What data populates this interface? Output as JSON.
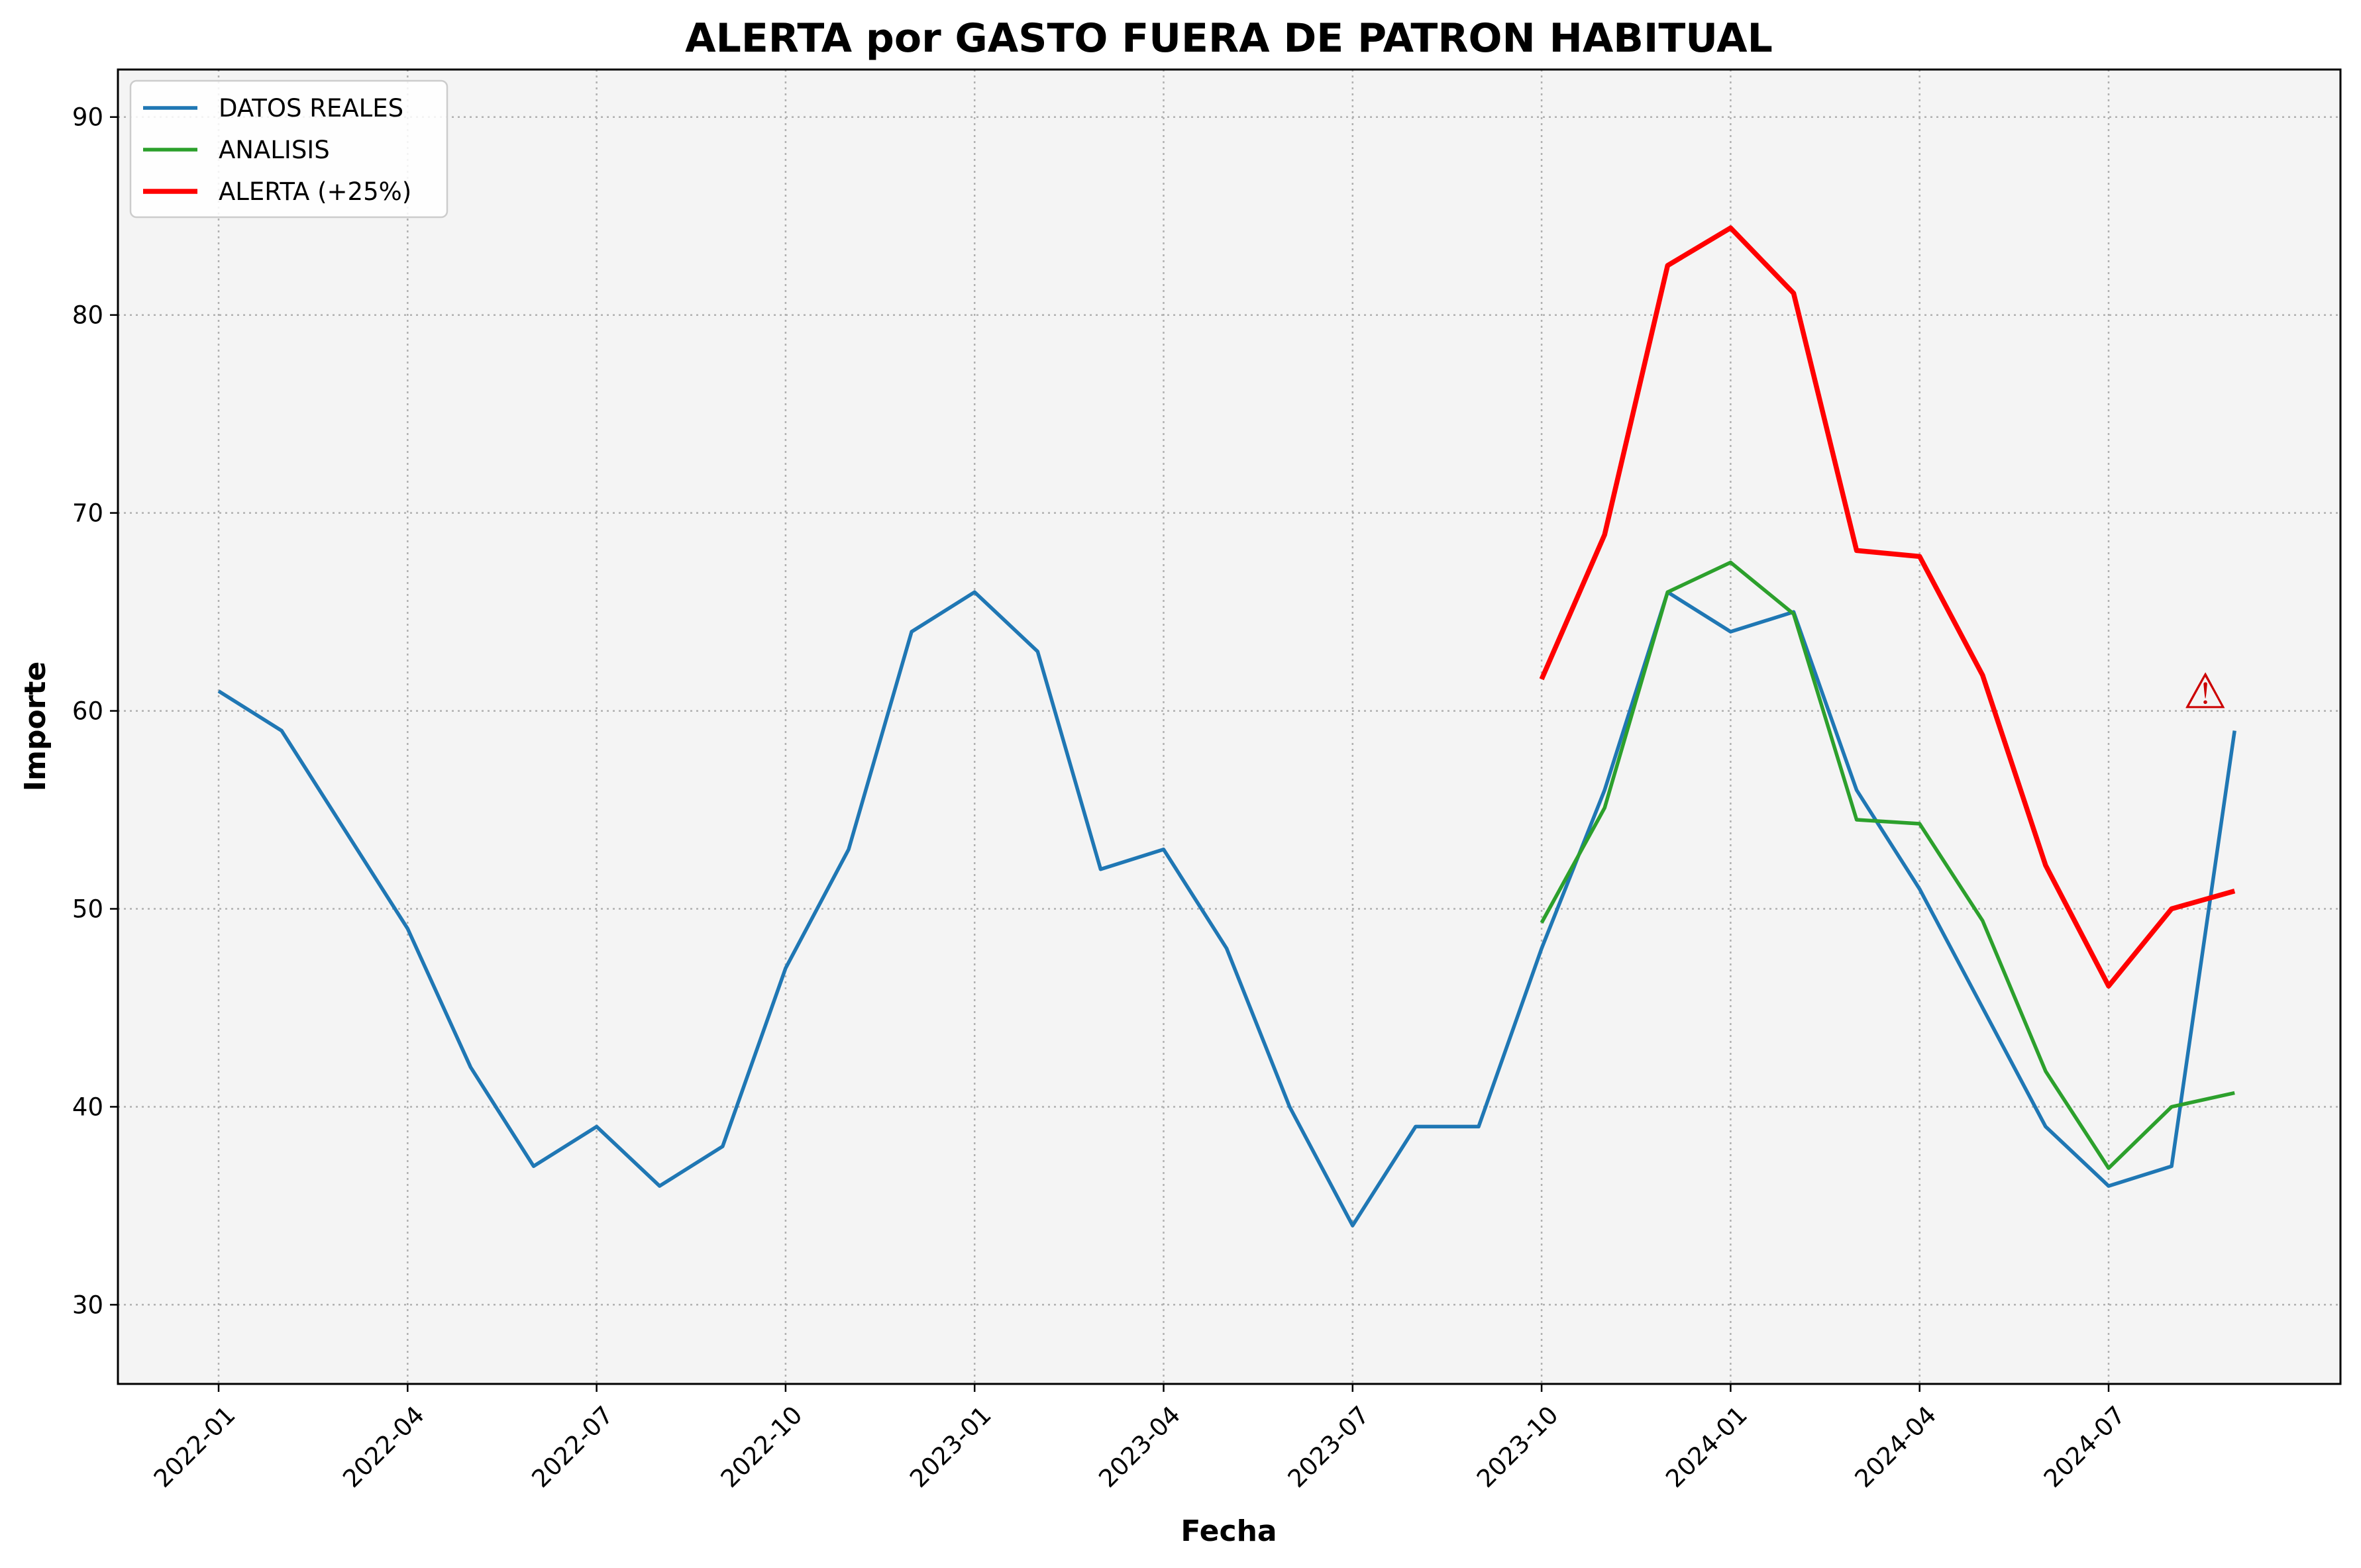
{
  "chart_data": {
    "type": "line",
    "title": "ALERTA por GASTO FUERA DE PATRON HABITUAL",
    "xlabel": "Fecha",
    "ylabel": "Importe",
    "ylim": [
      26,
      92.4
    ],
    "y_ticks": [
      30,
      40,
      50,
      60,
      70,
      80,
      90
    ],
    "x_ticks": [
      "2022-01",
      "2022-04",
      "2022-07",
      "2022-10",
      "2023-01",
      "2023-04",
      "2023-07",
      "2023-10",
      "2024-01",
      "2024-04",
      "2024-07"
    ],
    "grid": true,
    "legend_position": "top-left",
    "background_color": "#f4f4f4",
    "x": [
      "2022-01",
      "2022-02",
      "2022-03",
      "2022-04",
      "2022-05",
      "2022-06",
      "2022-07",
      "2022-08",
      "2022-09",
      "2022-10",
      "2022-11",
      "2022-12",
      "2023-01",
      "2023-02",
      "2023-03",
      "2023-04",
      "2023-05",
      "2023-06",
      "2023-07",
      "2023-08",
      "2023-09",
      "2023-10",
      "2023-11",
      "2023-12",
      "2024-01",
      "2024-02",
      "2024-03",
      "2024-04",
      "2024-05",
      "2024-06",
      "2024-07",
      "2024-08",
      "2024-09"
    ],
    "series": [
      {
        "name": "DATOS REALES",
        "color": "#1f77b4",
        "x": [
          "2022-01",
          "2022-02",
          "2022-03",
          "2022-04",
          "2022-05",
          "2022-06",
          "2022-07",
          "2022-08",
          "2022-09",
          "2022-10",
          "2022-11",
          "2022-12",
          "2023-01",
          "2023-02",
          "2023-03",
          "2023-04",
          "2023-05",
          "2023-06",
          "2023-07",
          "2023-08",
          "2023-09",
          "2023-10",
          "2023-11",
          "2023-12",
          "2024-01",
          "2024-02",
          "2024-03",
          "2024-04",
          "2024-05",
          "2024-06",
          "2024-07",
          "2024-08",
          "2024-09"
        ],
        "values": [
          61,
          59,
          54,
          49,
          42,
          37,
          39,
          36,
          38,
          47,
          53,
          64,
          66,
          63,
          52,
          53,
          48,
          40,
          34,
          39,
          39,
          48,
          56,
          66,
          64,
          65,
          56,
          51,
          45,
          39,
          36,
          37,
          59
        ]
      },
      {
        "name": "ANALISIS",
        "color": "#2ca02c",
        "x": [
          "2023-10",
          "2023-11",
          "2023-12",
          "2024-01",
          "2024-02",
          "2024-03",
          "2024-04",
          "2024-05",
          "2024-06",
          "2024-07",
          "2024-08",
          "2024-09"
        ],
        "values": [
          49.3,
          55.1,
          66,
          67.5,
          64.9,
          54.5,
          54.3,
          49.4,
          41.8,
          36.9,
          40,
          40.7
        ]
      },
      {
        "name": "ALERTA (+25%)",
        "color": "#ff0000",
        "x": [
          "2023-10",
          "2023-11",
          "2023-12",
          "2024-01",
          "2024-02",
          "2024-03",
          "2024-04",
          "2024-05",
          "2024-06",
          "2024-07",
          "2024-08",
          "2024-09"
        ],
        "values": [
          61.6,
          68.9,
          82.5,
          84.4,
          81.1,
          68.1,
          67.8,
          61.8,
          52.2,
          46.1,
          50,
          50.9
        ]
      }
    ],
    "annotations": [
      {
        "text": "⚠",
        "x": "2024-08-17",
        "y": 60.8,
        "color": "#cc0000"
      }
    ]
  }
}
